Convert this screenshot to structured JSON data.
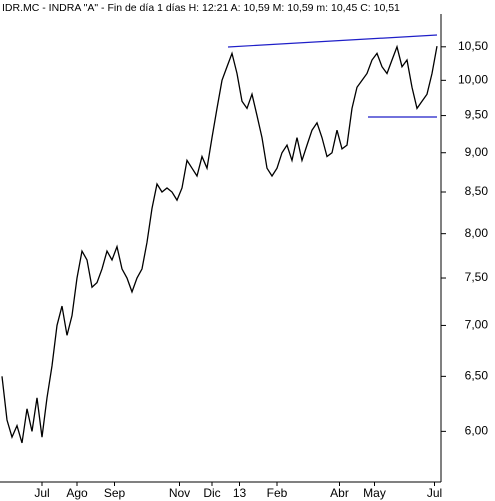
{
  "chart_data": {
    "type": "line",
    "title": "IDR.MC - INDRA \"A\" - Fin de día 1 días  H: 12:21  A: 10,59  M: 10,59  m: 10,45  C: 10,51",
    "x": [
      0,
      2,
      4,
      6,
      8,
      10,
      12,
      14,
      16,
      18,
      20,
      22,
      24,
      26,
      28,
      30,
      32,
      34,
      36,
      38,
      40,
      42,
      44,
      46,
      48,
      50,
      52,
      54,
      56,
      58,
      60,
      62,
      64,
      66,
      68,
      70,
      72,
      74,
      76,
      78,
      80,
      82,
      84,
      86,
      88,
      90,
      92,
      94,
      96,
      98,
      100,
      102,
      104,
      106,
      108,
      110,
      112,
      114,
      116,
      118,
      120,
      122,
      124,
      126,
      128,
      130,
      132,
      134,
      136,
      138,
      140,
      142,
      144,
      146,
      148,
      150,
      152,
      154,
      156,
      158,
      160,
      162,
      164,
      166,
      168,
      170,
      172,
      174
    ],
    "series": [
      {
        "name": "IDR.MC",
        "color": "#000000",
        "values": [
          6.5,
          6.1,
          5.95,
          6.05,
          5.9,
          6.2,
          6.0,
          6.3,
          5.95,
          6.3,
          6.6,
          7.0,
          7.2,
          6.9,
          7.1,
          7.5,
          7.8,
          7.7,
          7.4,
          7.45,
          7.6,
          7.8,
          7.7,
          7.85,
          7.6,
          7.5,
          7.35,
          7.5,
          7.6,
          7.9,
          8.3,
          8.6,
          8.5,
          8.55,
          8.5,
          8.4,
          8.55,
          8.9,
          8.8,
          8.7,
          8.95,
          8.8,
          9.2,
          9.6,
          10.0,
          10.2,
          10.4,
          10.1,
          9.7,
          9.6,
          9.8,
          9.5,
          9.2,
          8.8,
          8.7,
          8.8,
          9.0,
          9.1,
          8.9,
          9.2,
          8.9,
          9.1,
          9.3,
          9.4,
          9.2,
          8.95,
          9.0,
          9.3,
          9.05,
          9.1,
          9.6,
          9.9,
          10.0,
          10.1,
          10.3,
          10.4,
          10.2,
          10.1,
          10.3,
          10.5,
          10.2,
          10.3,
          9.9,
          9.6,
          9.7,
          9.8,
          10.1,
          10.51
        ]
      }
    ],
    "xlim": [
      0,
      176
    ],
    "xticks": [
      {
        "value": 16,
        "label": "Jul"
      },
      {
        "value": 30,
        "label": "Ago"
      },
      {
        "value": 45,
        "label": "Sep"
      },
      {
        "value": 71,
        "label": "Nov"
      },
      {
        "value": 84,
        "label": "Dic"
      },
      {
        "value": 95,
        "label": "13"
      },
      {
        "value": 110,
        "label": "Feb"
      },
      {
        "value": 135,
        "label": "Abr"
      },
      {
        "value": 149,
        "label": "May"
      },
      {
        "value": 173,
        "label": "Jul"
      }
    ],
    "ylim": [
      5.59,
      11.24
    ],
    "log_y": true,
    "yticks": [
      {
        "value": 6,
        "label": "6,00"
      },
      {
        "value": 6.5,
        "label": "6,50"
      },
      {
        "value": 7,
        "label": "7,00"
      },
      {
        "value": 7.5,
        "label": "7,50"
      },
      {
        "value": 8,
        "label": "8,00"
      },
      {
        "value": 8.5,
        "label": "8,50"
      },
      {
        "value": 9,
        "label": "9,00"
      },
      {
        "value": 9.5,
        "label": "9,50"
      },
      {
        "value": 10,
        "label": "10,00"
      },
      {
        "value": 10.5,
        "label": "10,50"
      }
    ],
    "grid": false
  }
}
